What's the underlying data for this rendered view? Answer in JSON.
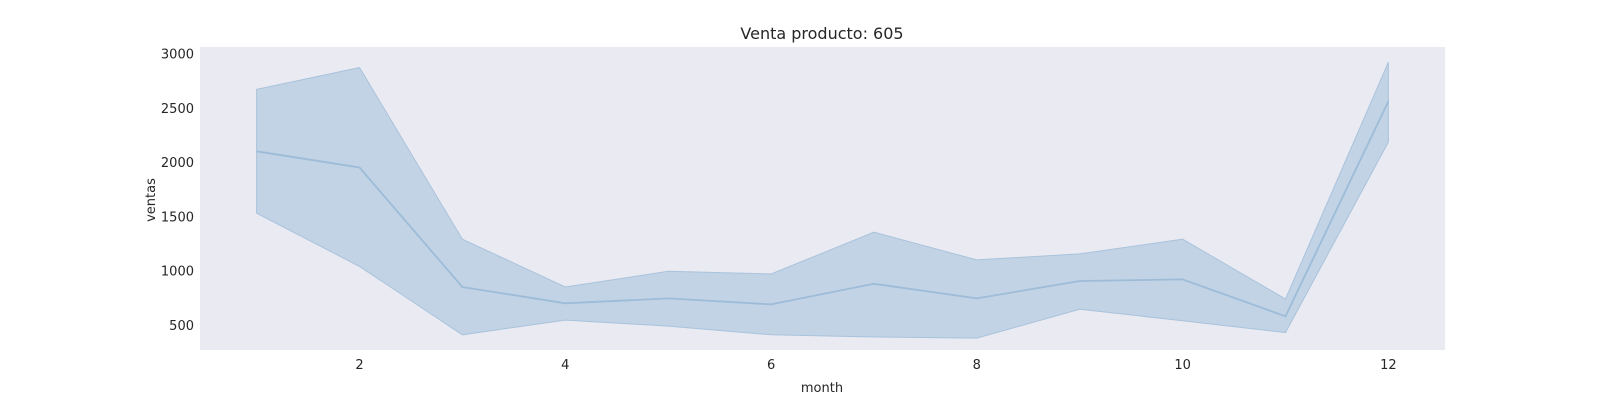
{
  "chart_data": {
    "type": "line",
    "title": "Venta producto: 605",
    "xlabel": "month",
    "ylabel": "ventas",
    "xlim": [
      0.45,
      12.55
    ],
    "ylim": [
      270,
      3060
    ],
    "xticks": [
      2,
      4,
      6,
      8,
      10,
      12
    ],
    "yticks": [
      500,
      1000,
      1500,
      2000,
      2500,
      3000
    ],
    "grid": false,
    "colors": {
      "background": "#eaeaf2",
      "line": "#9dbcd8",
      "band": "#c2d3e5",
      "band_edge": "#a9c3dc"
    },
    "series": [
      {
        "x": [
          1,
          2,
          3,
          4,
          5,
          6,
          7,
          8,
          9,
          10,
          11,
          12
        ],
        "y": [
          2100,
          1950,
          850,
          700,
          745,
          690,
          880,
          745,
          905,
          920,
          580,
          2560
        ],
        "ci_upper": [
          2670,
          2870,
          1290,
          850,
          995,
          970,
          1355,
          1100,
          1155,
          1290,
          740,
          2920
        ],
        "ci_lower": [
          1530,
          1040,
          410,
          545,
          490,
          410,
          390,
          380,
          645,
          540,
          430,
          2185
        ]
      }
    ]
  }
}
